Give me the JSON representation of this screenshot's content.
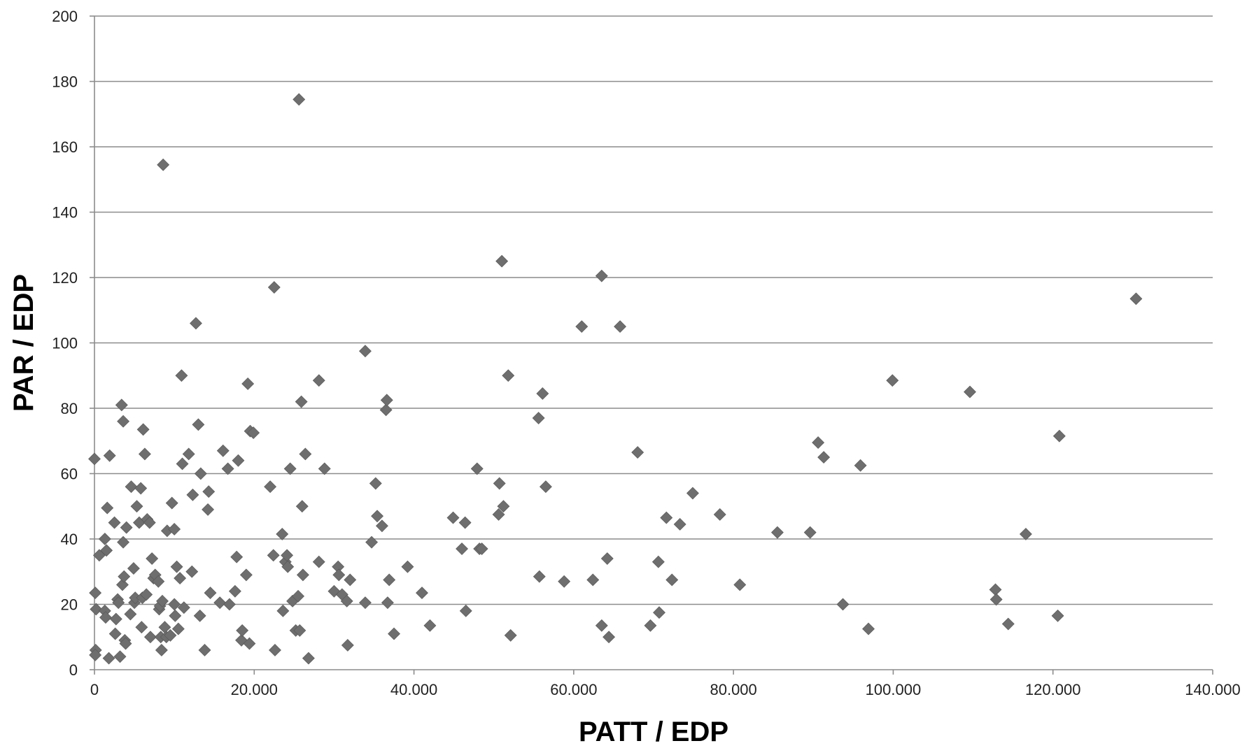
{
  "chart_data": {
    "type": "scatter",
    "title": "",
    "xlabel": "PATT / EDP",
    "ylabel": "PAR / EDP",
    "xlim": [
      0,
      140000
    ],
    "ylim": [
      0,
      200
    ],
    "x_ticks": [
      0,
      20000,
      40000,
      60000,
      80000,
      100000,
      120000,
      140000
    ],
    "x_tick_labels": [
      "0",
      "20.000",
      "40.000",
      "60.000",
      "80.000",
      "100.000",
      "120.000",
      "140.000"
    ],
    "y_ticks": [
      0,
      20,
      40,
      60,
      80,
      100,
      120,
      140,
      160,
      180,
      200
    ],
    "y_tick_labels": [
      "0",
      "20",
      "40",
      "60",
      "80",
      "100",
      "120",
      "140",
      "160",
      "180",
      "200"
    ],
    "grid": "horizontal",
    "marker": "diamond",
    "marker_color": "#6e6e6e",
    "series": [
      {
        "points": [
          [
            0,
            64.5
          ],
          [
            100,
            23.5
          ],
          [
            200,
            18.5
          ],
          [
            150,
            6
          ],
          [
            100,
            4.5
          ],
          [
            600,
            35
          ],
          [
            1300,
            40
          ],
          [
            1300,
            18
          ],
          [
            1400,
            16
          ],
          [
            1500,
            36.5
          ],
          [
            1600,
            49.5
          ],
          [
            1800,
            3.5
          ],
          [
            1900,
            65.5
          ],
          [
            2500,
            45
          ],
          [
            2600,
            11
          ],
          [
            2700,
            15.5
          ],
          [
            2900,
            21.5
          ],
          [
            3000,
            20.5
          ],
          [
            3200,
            4
          ],
          [
            3400,
            81
          ],
          [
            3500,
            26
          ],
          [
            3600,
            76
          ],
          [
            3600,
            39
          ],
          [
            3700,
            28.5
          ],
          [
            3800,
            9
          ],
          [
            3900,
            8
          ],
          [
            4000,
            43.5
          ],
          [
            4500,
            17
          ],
          [
            4600,
            56
          ],
          [
            4900,
            31
          ],
          [
            5000,
            20.5
          ],
          [
            5100,
            22
          ],
          [
            5300,
            50
          ],
          [
            5600,
            45
          ],
          [
            5800,
            55.5
          ],
          [
            5900,
            13
          ],
          [
            6000,
            22
          ],
          [
            6100,
            73.5
          ],
          [
            6300,
            66
          ],
          [
            6500,
            23
          ],
          [
            6600,
            46
          ],
          [
            6900,
            45
          ],
          [
            7000,
            10
          ],
          [
            7200,
            34
          ],
          [
            7400,
            28
          ],
          [
            7600,
            29
          ],
          [
            8000,
            27
          ],
          [
            8100,
            18.5
          ],
          [
            8200,
            19.5
          ],
          [
            8300,
            10
          ],
          [
            8400,
            6
          ],
          [
            8500,
            21
          ],
          [
            8600,
            154.5
          ],
          [
            8800,
            13
          ],
          [
            9000,
            10
          ],
          [
            9100,
            42.5
          ],
          [
            9500,
            10.5
          ],
          [
            9700,
            51
          ],
          [
            10000,
            43
          ],
          [
            10000,
            20
          ],
          [
            10100,
            16.5
          ],
          [
            10300,
            31.5
          ],
          [
            10500,
            12.5
          ],
          [
            10700,
            28
          ],
          [
            10900,
            90
          ],
          [
            11000,
            63
          ],
          [
            11200,
            19
          ],
          [
            11800,
            66
          ],
          [
            12200,
            30
          ],
          [
            12300,
            53.5
          ],
          [
            12700,
            106
          ],
          [
            13000,
            75
          ],
          [
            13200,
            16.5
          ],
          [
            13300,
            60
          ],
          [
            13800,
            6
          ],
          [
            14200,
            49
          ],
          [
            14300,
            54.5
          ],
          [
            14500,
            23.5
          ],
          [
            15700,
            20.5
          ],
          [
            16100,
            67
          ],
          [
            16700,
            61.5
          ],
          [
            16900,
            20
          ],
          [
            17600,
            24
          ],
          [
            17800,
            34.5
          ],
          [
            18000,
            64
          ],
          [
            18400,
            9
          ],
          [
            18500,
            12
          ],
          [
            19000,
            29
          ],
          [
            19200,
            87.5
          ],
          [
            19400,
            8
          ],
          [
            19500,
            73
          ],
          [
            19900,
            72.5
          ],
          [
            22000,
            56
          ],
          [
            22400,
            35
          ],
          [
            22500,
            117
          ],
          [
            22600,
            6
          ],
          [
            23500,
            41.5
          ],
          [
            23600,
            18
          ],
          [
            23900,
            33
          ],
          [
            24100,
            35
          ],
          [
            24200,
            31.5
          ],
          [
            24500,
            61.5
          ],
          [
            24800,
            21
          ],
          [
            25200,
            12
          ],
          [
            25500,
            22.5
          ],
          [
            25600,
            174.5
          ],
          [
            25700,
            12
          ],
          [
            25900,
            82
          ],
          [
            26000,
            50
          ],
          [
            26100,
            29
          ],
          [
            26400,
            66
          ],
          [
            26800,
            3.5
          ],
          [
            28100,
            88.5
          ],
          [
            28100,
            33
          ],
          [
            28800,
            61.5
          ],
          [
            30000,
            24
          ],
          [
            30500,
            31.5
          ],
          [
            30600,
            29
          ],
          [
            31000,
            23
          ],
          [
            31600,
            21
          ],
          [
            31700,
            7.5
          ],
          [
            32000,
            27.5
          ],
          [
            33900,
            97.5
          ],
          [
            33900,
            20.5
          ],
          [
            34700,
            39
          ],
          [
            35200,
            57
          ],
          [
            35400,
            47
          ],
          [
            36000,
            44
          ],
          [
            36500,
            79.5
          ],
          [
            36600,
            82.5
          ],
          [
            36700,
            20.5
          ],
          [
            36900,
            27.5
          ],
          [
            37500,
            11
          ],
          [
            39200,
            31.5
          ],
          [
            41000,
            23.5
          ],
          [
            42000,
            13.5
          ],
          [
            44900,
            46.5
          ],
          [
            46000,
            37
          ],
          [
            46400,
            45
          ],
          [
            46500,
            18
          ],
          [
            47900,
            61.5
          ],
          [
            48200,
            37
          ],
          [
            48500,
            37
          ],
          [
            50600,
            47.5
          ],
          [
            50700,
            57
          ],
          [
            51000,
            125
          ],
          [
            51200,
            50
          ],
          [
            51800,
            90
          ],
          [
            52100,
            10.5
          ],
          [
            55600,
            77
          ],
          [
            55700,
            28.5
          ],
          [
            56100,
            84.5
          ],
          [
            56500,
            56
          ],
          [
            58800,
            27
          ],
          [
            61000,
            105
          ],
          [
            62400,
            27.5
          ],
          [
            63500,
            120.5
          ],
          [
            63500,
            13.5
          ],
          [
            64200,
            34
          ],
          [
            64400,
            10
          ],
          [
            65800,
            105
          ],
          [
            68000,
            66.5
          ],
          [
            69600,
            13.5
          ],
          [
            70600,
            33
          ],
          [
            70700,
            17.5
          ],
          [
            71600,
            46.5
          ],
          [
            72300,
            27.5
          ],
          [
            73300,
            44.5
          ],
          [
            74900,
            54
          ],
          [
            78300,
            47.5
          ],
          [
            80800,
            26
          ],
          [
            85500,
            42
          ],
          [
            89600,
            42
          ],
          [
            90600,
            69.5
          ],
          [
            91300,
            65
          ],
          [
            93700,
            20
          ],
          [
            95900,
            62.5
          ],
          [
            96900,
            12.5
          ],
          [
            99900,
            88.5
          ],
          [
            109600,
            85
          ],
          [
            112800,
            24.5
          ],
          [
            112900,
            21.5
          ],
          [
            114400,
            14
          ],
          [
            116600,
            41.5
          ],
          [
            120600,
            16.5
          ],
          [
            120800,
            71.5
          ],
          [
            130400,
            113.5
          ]
        ]
      }
    ]
  }
}
